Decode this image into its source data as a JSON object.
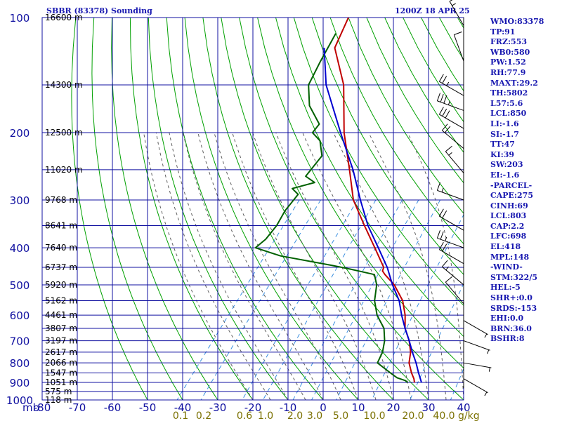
{
  "header": {
    "title": "SBBR (83378) Sounding",
    "time": "1200Z 18 APR 25"
  },
  "stats": [
    "WMO:83378",
    "TP:91",
    "FRZ:553",
    "WB0:580",
    "PW:1.52",
    "RH:77.9",
    "MAXT:29.2",
    "TH:5802",
    "L57:5.6",
    "LCL:850",
    "LI:-1.6",
    "SI:-1.7",
    "TT:47",
    "KI:39",
    "SW:203",
    "EI:-1.6",
    "-PARCEL-",
    "CAPE:275",
    "CINH:69",
    "LCL:803",
    "CAP:2.2",
    "LFC:698",
    "EL:418",
    "MPL:148",
    "-WIND-",
    "STM:322/5",
    "HEL:-5",
    "SHR+:0.0",
    "SRDS:-153",
    "EHI:0.0",
    "BRN:36.0",
    "BSHR:8"
  ],
  "colors": {
    "grid": "#1010a0",
    "dry_adiabat": "#00a000",
    "moist_adiabat": "#606060",
    "mixing_ratio": "#3a8fe0",
    "temperature": "#c00000",
    "dewpoint": "#006000",
    "parcel": "#0000d0",
    "mixing_label": "#7a7000",
    "wind": "#000000"
  },
  "chart_data": {
    "type": "line",
    "xlabel": "",
    "ylabel": "mb",
    "pressure_levels": [
      100,
      200,
      300,
      400,
      500,
      600,
      700,
      800,
      900,
      1000
    ],
    "temperature_ticks": [
      -80,
      -70,
      -60,
      -50,
      -40,
      -30,
      -20,
      -10,
      0,
      10,
      20,
      30,
      40
    ],
    "mixing_ratio_labels": [
      "0.1",
      "0.2",
      "0.6",
      "1.0",
      "2.0",
      "3.0",
      "5.0",
      "10.0",
      "20.0",
      "40.0"
    ],
    "mixing_ratio_unit": "g/kg",
    "height_labels": [
      {
        "p": 100,
        "text": "16600 m"
      },
      {
        "p": 150,
        "text": "14300 m"
      },
      {
        "p": 200,
        "text": "12500 m"
      },
      {
        "p": 250,
        "text": "11020 m"
      },
      {
        "p": 300,
        "text": "9768 m"
      },
      {
        "p": 350,
        "text": "8641 m"
      },
      {
        "p": 400,
        "text": "7640 m"
      },
      {
        "p": 450,
        "text": "6737 m"
      },
      {
        "p": 500,
        "text": "5920 m"
      },
      {
        "p": 550,
        "text": "5162 m"
      },
      {
        "p": 600,
        "text": "4461 m"
      },
      {
        "p": 650,
        "text": "3807 m"
      },
      {
        "p": 700,
        "text": "3197 m"
      },
      {
        "p": 750,
        "text": "2617 m"
      },
      {
        "p": 800,
        "text": "2066 m"
      },
      {
        "p": 850,
        "text": "1547 m"
      },
      {
        "p": 900,
        "text": "1051 m"
      },
      {
        "p": 950,
        "text": "575 m"
      },
      {
        "p": 1000,
        "text": "118 m"
      }
    ],
    "series": [
      {
        "key": "temperature",
        "points": [
          [
            100,
            -80
          ],
          [
            120,
            -77
          ],
          [
            150,
            -66
          ],
          [
            200,
            -55
          ],
          [
            250,
            -45
          ],
          [
            300,
            -37
          ],
          [
            350,
            -28
          ],
          [
            400,
            -20
          ],
          [
            450,
            -13
          ],
          [
            460,
            -12.5
          ],
          [
            470,
            -11
          ],
          [
            500,
            -6
          ],
          [
            550,
            0
          ],
          [
            600,
            4
          ],
          [
            650,
            7
          ],
          [
            700,
            11
          ],
          [
            750,
            14
          ],
          [
            800,
            16
          ],
          [
            850,
            19
          ],
          [
            880,
            21
          ],
          [
            900,
            22
          ]
        ]
      },
      {
        "key": "dewpoint",
        "points": [
          [
            110,
            -80
          ],
          [
            130,
            -78
          ],
          [
            150,
            -76
          ],
          [
            170,
            -71
          ],
          [
            190,
            -64
          ],
          [
            200,
            -64
          ],
          [
            210,
            -60
          ],
          [
            230,
            -56
          ],
          [
            260,
            -56
          ],
          [
            270,
            -52
          ],
          [
            280,
            -57
          ],
          [
            290,
            -54
          ],
          [
            320,
            -54
          ],
          [
            350,
            -53
          ],
          [
            380,
            -53
          ],
          [
            400,
            -54
          ],
          [
            420,
            -45
          ],
          [
            445,
            -28
          ],
          [
            455,
            -22
          ],
          [
            470,
            -14
          ],
          [
            500,
            -11
          ],
          [
            550,
            -8
          ],
          [
            600,
            -4
          ],
          [
            650,
            1
          ],
          [
            700,
            4
          ],
          [
            750,
            6
          ],
          [
            800,
            7
          ],
          [
            850,
            13
          ],
          [
            875,
            16
          ],
          [
            890,
            19
          ],
          [
            900,
            20
          ]
        ]
      },
      {
        "key": "parcel",
        "points": [
          [
            120,
            -80
          ],
          [
            150,
            -71
          ],
          [
            200,
            -56
          ],
          [
            250,
            -44
          ],
          [
            300,
            -35
          ],
          [
            350,
            -27
          ],
          [
            400,
            -19
          ],
          [
            450,
            -12
          ],
          [
            500,
            -6.5
          ],
          [
            550,
            -1
          ],
          [
            600,
            3
          ],
          [
            650,
            7
          ],
          [
            700,
            11
          ],
          [
            750,
            14.5
          ],
          [
            800,
            18
          ],
          [
            850,
            21
          ],
          [
            900,
            24
          ]
        ]
      }
    ],
    "wind_barbs": [
      {
        "p": 105,
        "dir": 330,
        "speed": 15
      },
      {
        "p": 130,
        "dir": 340,
        "speed": 10
      },
      {
        "p": 160,
        "dir": 300,
        "speed": 25
      },
      {
        "p": 175,
        "dir": 290,
        "speed": 35
      },
      {
        "p": 195,
        "dir": 300,
        "speed": 30
      },
      {
        "p": 220,
        "dir": 310,
        "speed": 20
      },
      {
        "p": 255,
        "dir": 320,
        "speed": 15
      },
      {
        "p": 300,
        "dir": 290,
        "speed": 15
      },
      {
        "p": 360,
        "dir": 300,
        "speed": 20
      },
      {
        "p": 400,
        "dir": 290,
        "speed": 25
      },
      {
        "p": 440,
        "dir": 300,
        "speed": 20
      },
      {
        "p": 500,
        "dir": 310,
        "speed": 15
      },
      {
        "p": 560,
        "dir": 320,
        "speed": 10
      },
      {
        "p": 620,
        "dir": 120,
        "speed": 5
      },
      {
        "p": 700,
        "dir": 110,
        "speed": 5
      },
      {
        "p": 800,
        "dir": 100,
        "speed": 5
      },
      {
        "p": 880,
        "dir": 120,
        "speed": 5
      }
    ]
  }
}
